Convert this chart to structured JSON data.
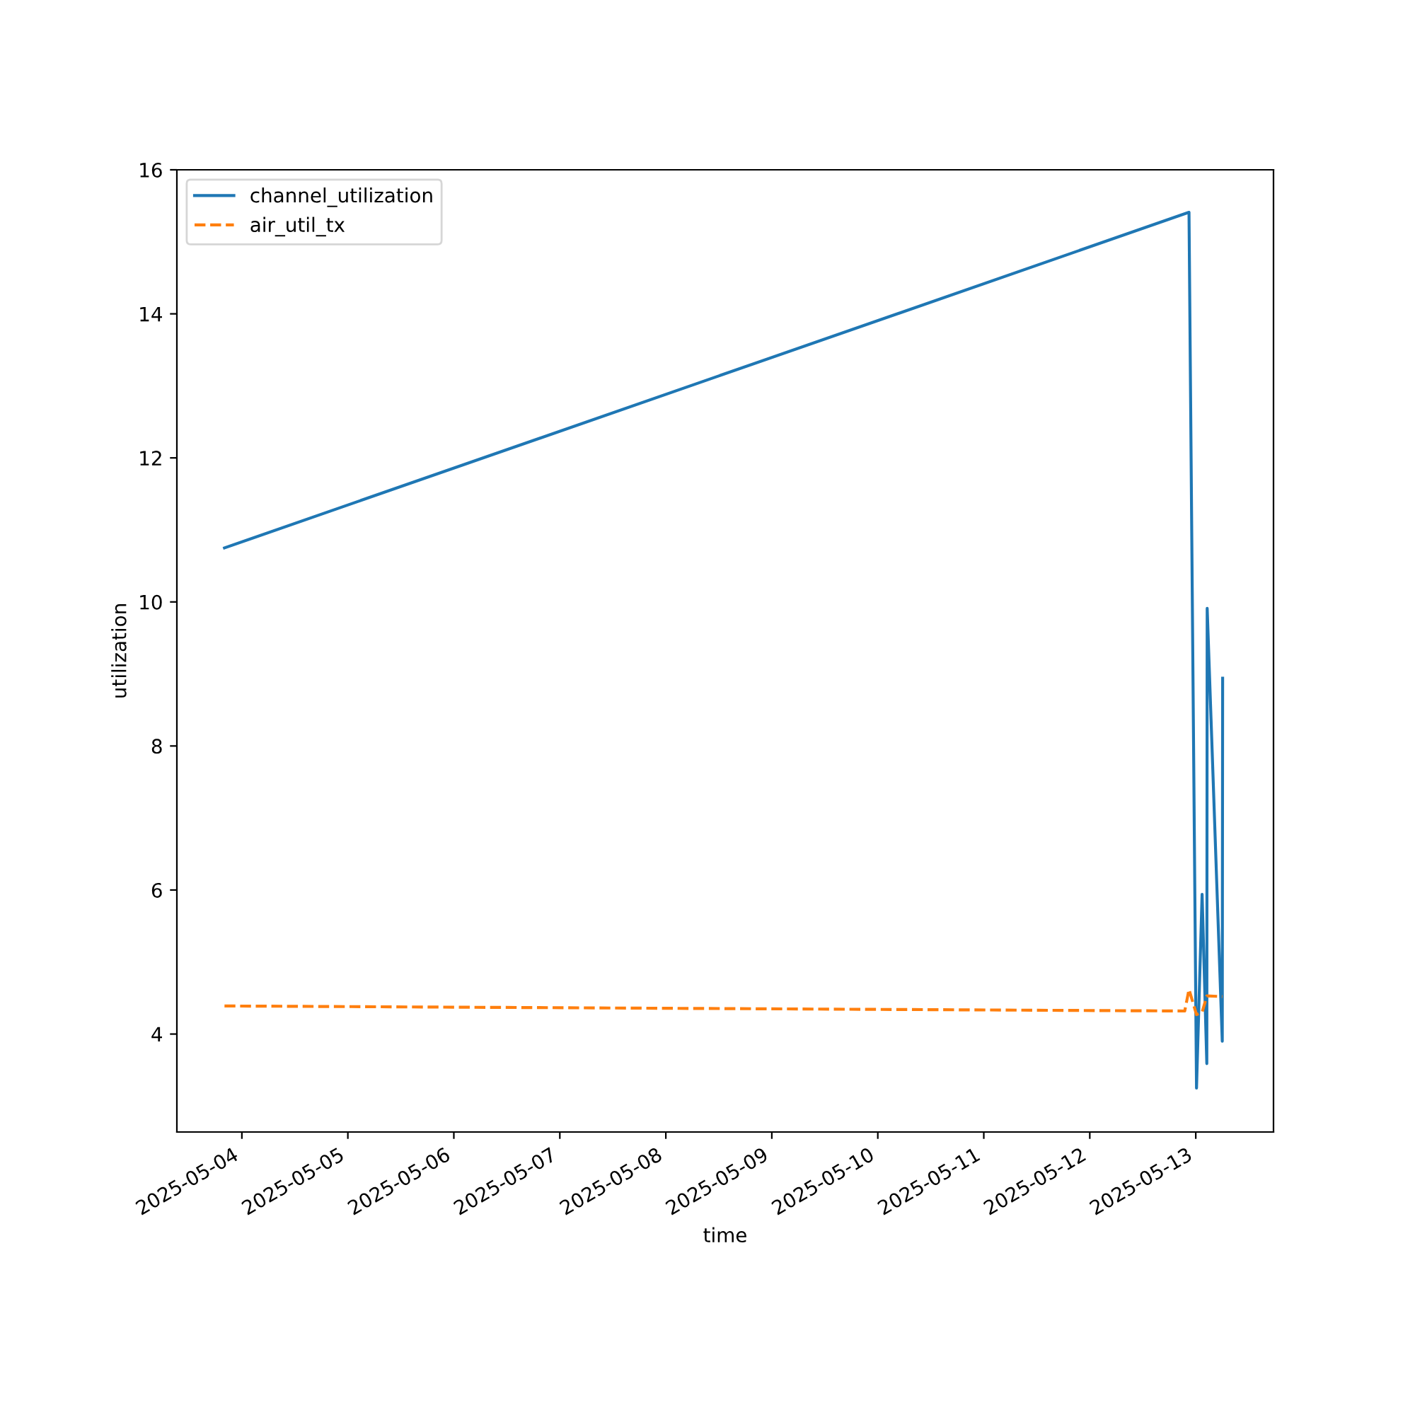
{
  "chart_data": {
    "type": "line",
    "xlabel": "time",
    "ylabel": "utilization",
    "legend": "top left",
    "grid": false,
    "xlim": [
      "2025-05-03T09:17",
      "2025-05-13T17:36"
    ],
    "xticks": [
      "2025-05-04",
      "2025-05-05",
      "2025-05-06",
      "2025-05-07",
      "2025-05-08",
      "2025-05-09",
      "2025-05-10",
      "2025-05-11",
      "2025-05-12",
      "2025-05-13"
    ],
    "ylim": [
      2.64,
      16
    ],
    "yticks": [
      4,
      6,
      8,
      10,
      12,
      14,
      16
    ],
    "series": [
      {
        "name": "channel_utilization",
        "color": "#1f77b4",
        "line_style": "solid",
        "x": [
          "2025-05-03T20:04",
          "2025-05-12T22:28",
          "2025-05-13T00:10",
          "2025-05-13T01:26",
          "2025-05-13T02:30",
          "2025-05-13T02:35",
          "2025-05-13T06:00",
          "2025-05-13T06:05"
        ],
        "values": [
          10.75,
          15.41,
          3.25,
          5.94,
          3.59,
          9.91,
          3.9,
          8.94
        ]
      },
      {
        "name": "air_util_tx",
        "color": "#ff7f0e",
        "line_style": "dashed",
        "x": [
          "2025-05-03T20:04",
          "2025-05-12T21:30",
          "2025-05-12T22:28",
          "2025-05-13T00:10",
          "2025-05-13T01:26",
          "2025-05-13T02:30",
          "2025-05-13T06:00"
        ],
        "values": [
          4.39,
          4.32,
          4.62,
          4.27,
          4.3,
          4.53,
          4.52
        ]
      }
    ]
  }
}
